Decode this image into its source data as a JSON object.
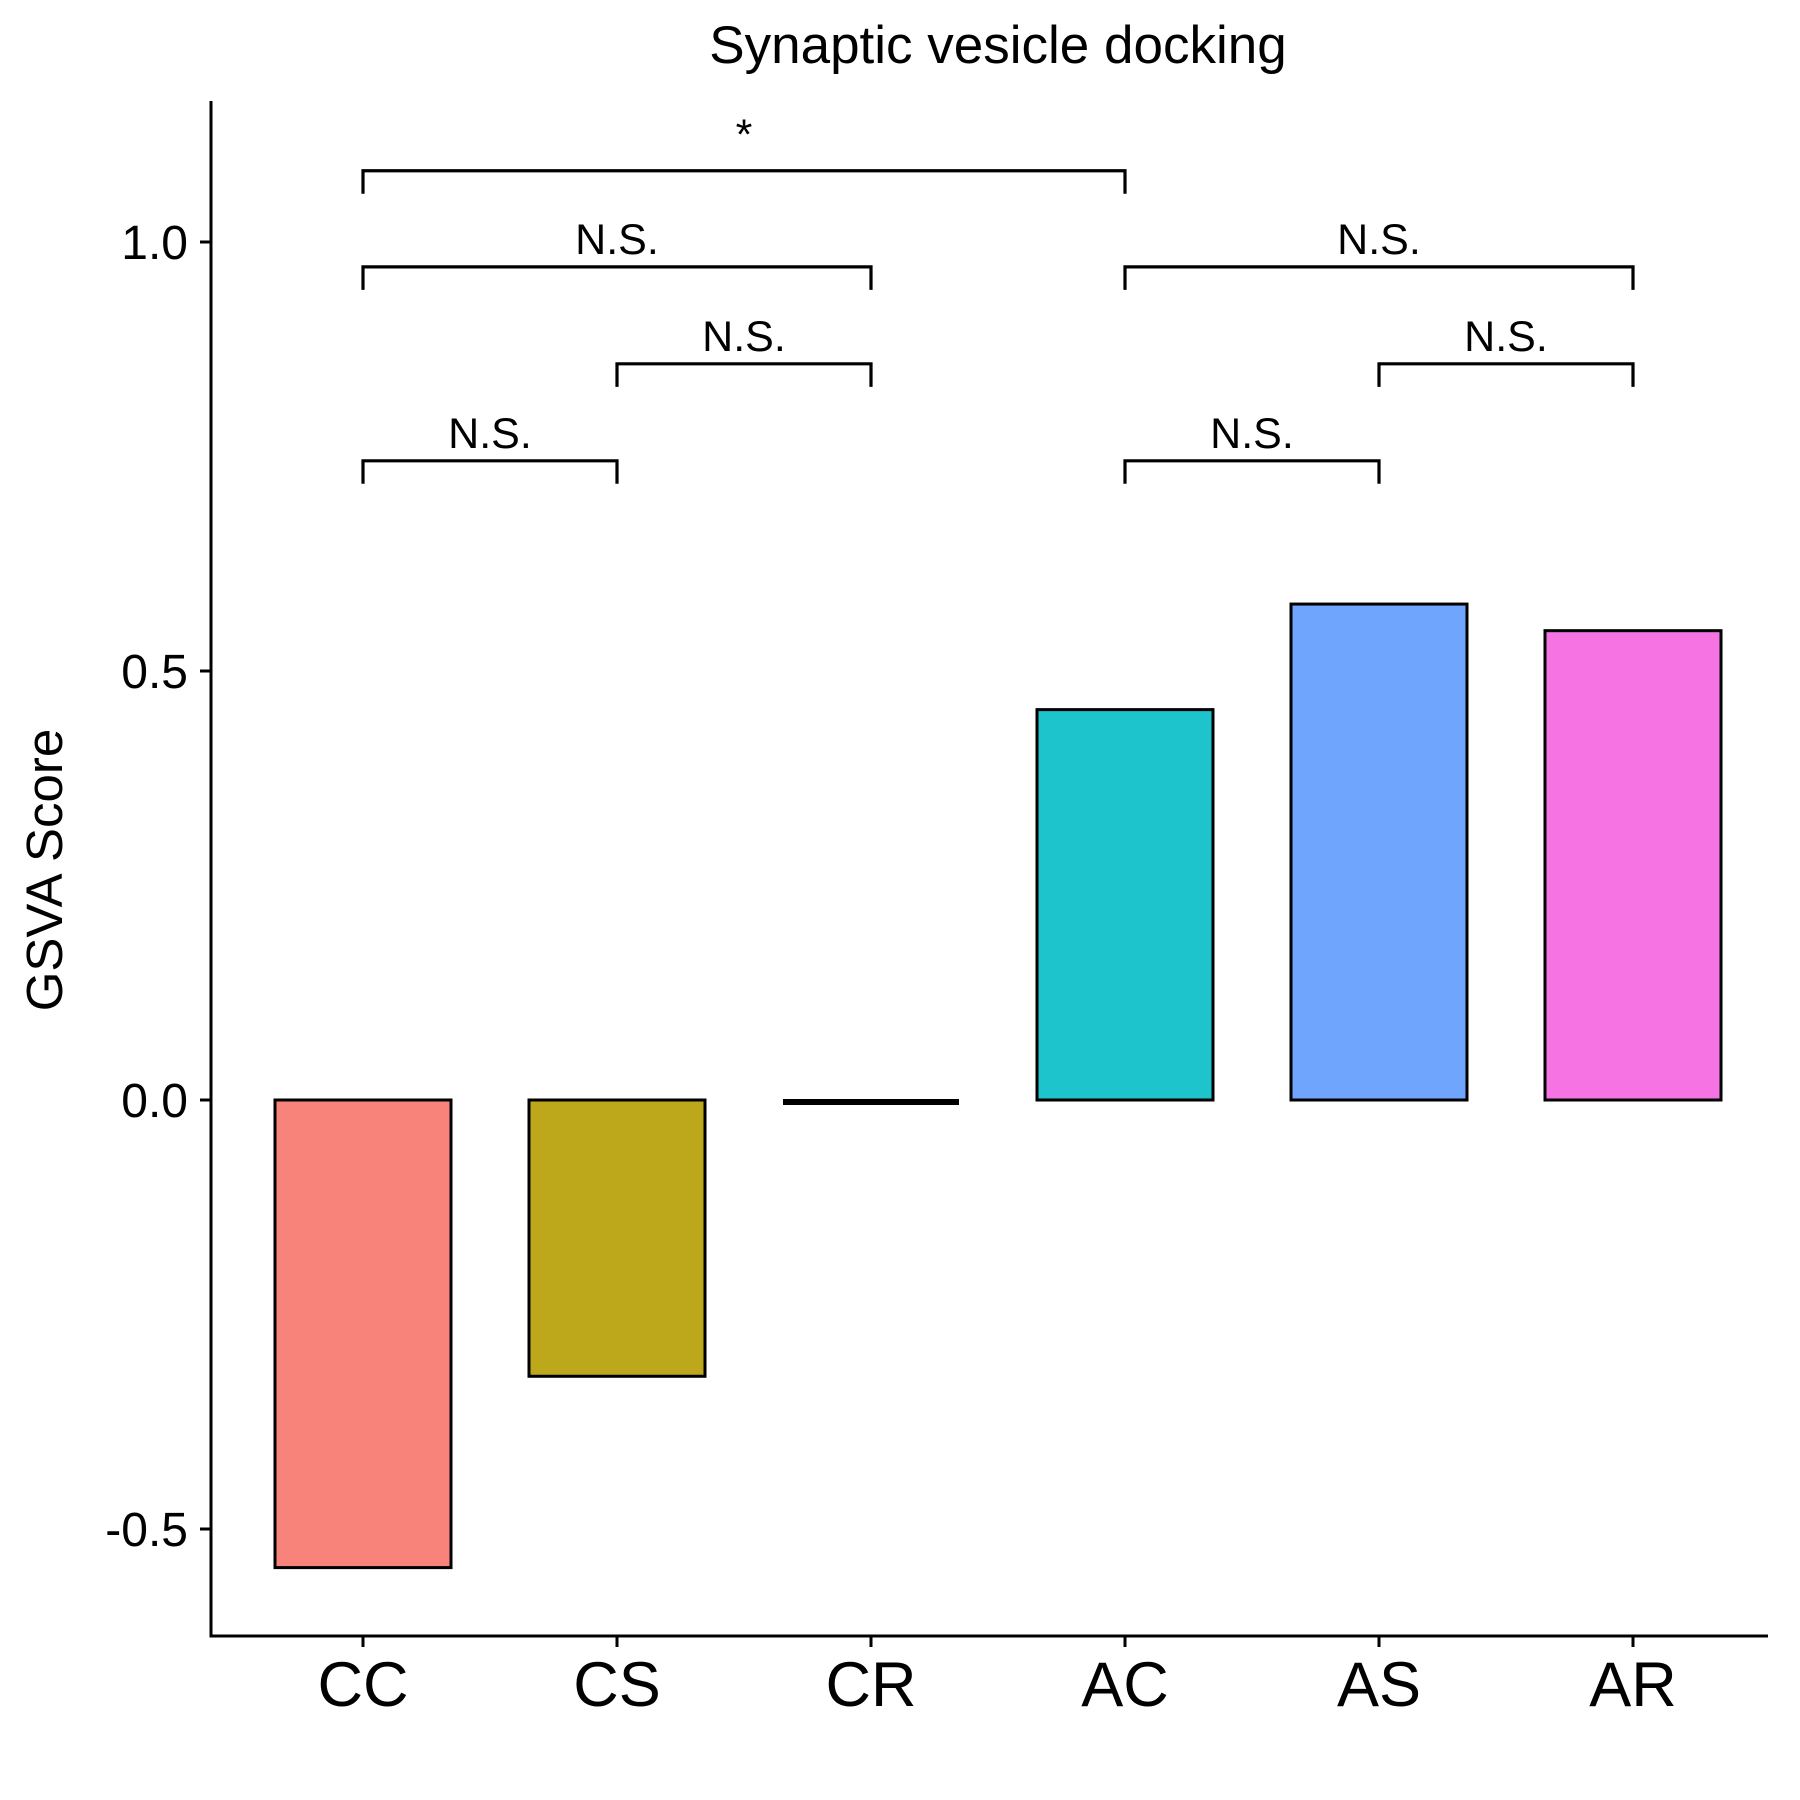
{
  "chart_data": {
    "type": "bar",
    "title": "Synaptic vesicle docking",
    "xlabel": "",
    "ylabel": "GSVA Score",
    "categories": [
      "CC",
      "CS",
      "CR",
      "AC",
      "AS",
      "AR"
    ],
    "values": [
      -0.545,
      -0.322,
      -0.003,
      0.455,
      0.578,
      0.547
    ],
    "colors": [
      "#F8837B",
      "#BDA71B",
      "#6FA3E0",
      "#1DC4CB",
      "#70A5FD",
      "#F573E3"
    ],
    "ylim": [
      -0.62,
      1.16
    ],
    "yticks": [
      -0.5,
      0.0,
      0.5,
      1.0
    ],
    "ytick_labels": [
      "-0.5",
      "0.0",
      "0.5",
      "1.0"
    ],
    "grid": false,
    "legend": "none",
    "comparisons": [
      {
        "group1": "CC",
        "group2": "CS",
        "y": 0.745,
        "label": "N.S."
      },
      {
        "group1": "CS",
        "group2": "CR",
        "y": 0.858,
        "label": "N.S."
      },
      {
        "group1": "CC",
        "group2": "CR",
        "y": 0.971,
        "label": "N.S."
      },
      {
        "group1": "CC",
        "group2": "AC",
        "y": 1.083,
        "label": "*"
      },
      {
        "group1": "AC",
        "group2": "AS",
        "y": 0.745,
        "label": "N.S."
      },
      {
        "group1": "AS",
        "group2": "AR",
        "y": 0.858,
        "label": "N.S."
      },
      {
        "group1": "AC",
        "group2": "AR",
        "y": 0.971,
        "label": "N.S."
      }
    ]
  }
}
